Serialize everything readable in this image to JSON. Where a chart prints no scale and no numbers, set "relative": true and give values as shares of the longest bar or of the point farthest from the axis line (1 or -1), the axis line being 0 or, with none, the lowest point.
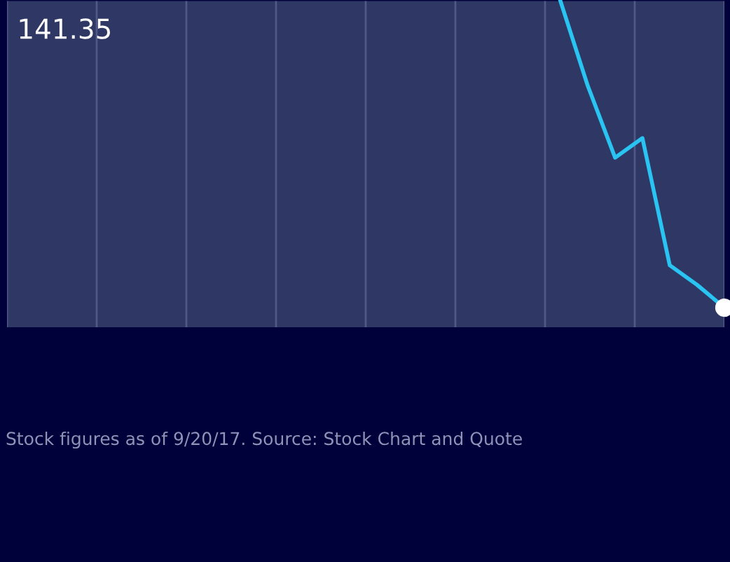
{
  "chart_data": {
    "type": "line",
    "relative": true,
    "categories": [
      null,
      null,
      null,
      null,
      null,
      null,
      null
    ],
    "marker": "none",
    "line_style": "solid",
    "series": [
      {
        "color": "#29c4f2",
        "values": [
          1.0,
          0.74,
          0.52,
          0.58,
          0.19,
          0.13,
          0.06
        ]
      }
    ],
    "annotations": [
      "141.35",
      "Stock figures as of 9/20/17. Source: Stock Chart and Quote"
    ]
  }
}
